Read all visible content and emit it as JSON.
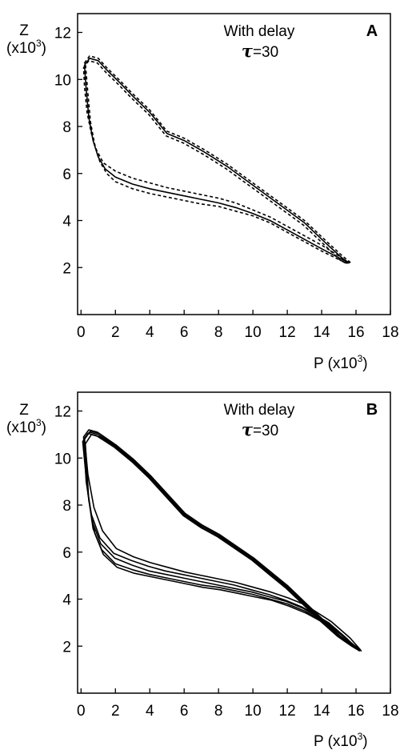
{
  "chart_data": [
    {
      "type": "line",
      "panel_label": "A",
      "annotation_line1": "With delay",
      "annotation_tau_symbol": "τ",
      "annotation_tau_value": "=30",
      "xlabel_main": "P (x10",
      "xlabel_exp": "3",
      "xlabel_tail": ")",
      "ylabel_top": "Z",
      "ylabel_main": "(x10",
      "ylabel_exp": "3",
      "ylabel_tail": ")",
      "xlim": [
        -0.2,
        18
      ],
      "ylim": [
        0,
        12.8
      ],
      "xticks": [
        "0",
        "2",
        "4",
        "6",
        "8",
        "10",
        "12",
        "14",
        "16",
        "18"
      ],
      "yticks": [
        "2",
        "4",
        "6",
        "8",
        "10",
        "12"
      ],
      "series": [
        {
          "style": "solid",
          "x": [
            0.2,
            0.5,
            1.0,
            1.5,
            2.2,
            3.0,
            4.0,
            5.0,
            6.0,
            7.2,
            8.5,
            10.0,
            11.5,
            13.0,
            14.3,
            15.2,
            15.6,
            15.3,
            14.0,
            12.5,
            11.0,
            10.0,
            9.0,
            8.0,
            7.0,
            6.0,
            5.0,
            4.0,
            3.0,
            2.0,
            1.4,
            1.0,
            0.7,
            0.45,
            0.3,
            0.2
          ],
          "y": [
            10.6,
            10.9,
            10.8,
            10.4,
            9.9,
            9.3,
            8.6,
            7.7,
            7.4,
            6.9,
            6.3,
            5.5,
            4.7,
            3.9,
            3.0,
            2.4,
            2.2,
            2.3,
            2.8,
            3.4,
            4.0,
            4.3,
            4.55,
            4.75,
            4.9,
            5.05,
            5.2,
            5.35,
            5.55,
            5.85,
            6.2,
            6.7,
            7.4,
            8.4,
            9.6,
            10.6
          ]
        },
        {
          "style": "dashed",
          "x": [
            0.2,
            0.5,
            1.0,
            1.5,
            2.2,
            3.0,
            4.0,
            5.0,
            6.0,
            7.2,
            8.5,
            10.0,
            11.5,
            13.0,
            14.3,
            15.2,
            15.7,
            15.4,
            14.0,
            12.5,
            11.0,
            10.0,
            9.0,
            8.0,
            7.0,
            6.0,
            5.0,
            4.0,
            3.0,
            2.0,
            1.5,
            1.1,
            0.8,
            0.55,
            0.4,
            0.25
          ],
          "y": [
            10.7,
            11.0,
            10.9,
            10.5,
            10.0,
            9.4,
            8.7,
            7.8,
            7.5,
            7.0,
            6.4,
            5.6,
            4.8,
            4.0,
            3.1,
            2.5,
            2.2,
            2.2,
            2.7,
            3.3,
            3.9,
            4.2,
            4.4,
            4.6,
            4.7,
            4.85,
            5.0,
            5.15,
            5.35,
            5.65,
            6.0,
            6.5,
            7.2,
            8.2,
            9.4,
            10.7
          ]
        },
        {
          "style": "dashed",
          "x": [
            0.15,
            0.45,
            0.95,
            1.45,
            2.15,
            2.95,
            3.95,
            4.95,
            5.95,
            7.15,
            8.45,
            9.95,
            11.45,
            12.95,
            14.25,
            15.1,
            15.5,
            15.2,
            14.0,
            12.5,
            11.0,
            10.0,
            9.0,
            8.0,
            7.0,
            6.0,
            5.0,
            4.0,
            3.0,
            2.0,
            1.3,
            0.9,
            0.6,
            0.35,
            0.2,
            0.15
          ],
          "y": [
            10.5,
            10.8,
            10.7,
            10.3,
            9.8,
            9.2,
            8.5,
            7.6,
            7.3,
            6.8,
            6.2,
            5.4,
            4.6,
            3.8,
            2.9,
            2.3,
            2.15,
            2.4,
            2.95,
            3.55,
            4.15,
            4.45,
            4.75,
            4.95,
            5.1,
            5.25,
            5.4,
            5.6,
            5.8,
            6.1,
            6.45,
            7.0,
            7.7,
            8.6,
            9.7,
            10.5
          ]
        }
      ]
    },
    {
      "type": "line",
      "panel_label": "B",
      "annotation_line1": "With delay",
      "annotation_tau_symbol": "τ",
      "annotation_tau_value": "=30",
      "xlabel_main": "P (x10",
      "xlabel_exp": "3",
      "xlabel_tail": ")",
      "ylabel_top": "Z",
      "ylabel_main": "(x10",
      "ylabel_exp": "3",
      "ylabel_tail": ")",
      "xlim": [
        -0.2,
        18
      ],
      "ylim": [
        0,
        12.8
      ],
      "xticks": [
        "0",
        "2",
        "4",
        "6",
        "8",
        "10",
        "12",
        "14",
        "16",
        "18"
      ],
      "yticks": [
        "2",
        "4",
        "6",
        "8",
        "10",
        "12"
      ],
      "series": [
        {
          "style": "solid",
          "x": [
            0.2,
            0.5,
            1.0,
            2.0,
            3.0,
            4.0,
            5.0,
            6.0,
            7.0,
            8.0,
            9.0,
            10.0,
            11.0,
            12.0,
            13.0,
            14.0,
            15.0,
            15.8,
            16.2,
            15.6,
            14.5,
            13.0,
            12.0,
            11.0,
            10.0,
            9.0,
            8.0,
            7.0,
            6.0,
            5.0,
            4.0,
            3.0,
            2.0,
            1.2,
            0.7,
            0.4,
            0.2
          ],
          "y": [
            10.8,
            11.1,
            11.0,
            10.5,
            9.9,
            9.2,
            8.4,
            7.6,
            7.1,
            6.7,
            6.2,
            5.7,
            5.1,
            4.5,
            3.8,
            3.1,
            2.4,
            2.0,
            1.8,
            2.2,
            2.9,
            3.5,
            3.8,
            4.0,
            4.2,
            4.35,
            4.5,
            4.6,
            4.75,
            4.9,
            5.05,
            5.25,
            5.5,
            6.1,
            7.0,
            8.5,
            10.8
          ]
        },
        {
          "style": "solid",
          "x": [
            0.15,
            0.45,
            0.95,
            1.9,
            2.9,
            3.9,
            4.9,
            5.9,
            6.9,
            7.9,
            8.9,
            9.9,
            10.9,
            11.9,
            12.9,
            13.9,
            14.9,
            15.7,
            16.1,
            15.5,
            14.4,
            12.9,
            11.9,
            10.9,
            9.9,
            8.9,
            7.9,
            6.9,
            5.9,
            4.9,
            3.9,
            2.9,
            1.9,
            1.1,
            0.6,
            0.3,
            0.15
          ],
          "y": [
            10.9,
            11.2,
            11.1,
            10.6,
            10.0,
            9.3,
            8.5,
            7.7,
            7.2,
            6.8,
            6.3,
            5.8,
            5.2,
            4.6,
            3.9,
            3.2,
            2.5,
            2.05,
            1.85,
            2.3,
            3.0,
            3.65,
            3.95,
            4.2,
            4.4,
            4.6,
            4.75,
            4.9,
            5.05,
            5.2,
            5.4,
            5.65,
            5.95,
            6.6,
            7.6,
            9.0,
            10.9
          ]
        },
        {
          "style": "solid",
          "x": [
            0.25,
            0.6,
            1.1,
            2.1,
            3.1,
            4.1,
            5.1,
            6.1,
            7.1,
            8.1,
            9.1,
            10.1,
            11.1,
            12.1,
            13.1,
            14.1,
            15.1,
            15.9,
            16.3,
            15.7,
            14.6,
            13.1,
            12.1,
            11.1,
            10.1,
            9.1,
            8.1,
            7.1,
            6.1,
            5.1,
            4.1,
            3.1,
            2.1,
            1.3,
            0.8,
            0.45,
            0.25
          ],
          "y": [
            10.6,
            11.0,
            10.9,
            10.4,
            9.8,
            9.1,
            8.3,
            7.5,
            7.0,
            6.6,
            6.1,
            5.6,
            5.0,
            4.4,
            3.7,
            3.0,
            2.35,
            1.95,
            1.8,
            2.15,
            2.8,
            3.4,
            3.7,
            3.95,
            4.1,
            4.25,
            4.4,
            4.5,
            4.65,
            4.8,
            4.95,
            5.1,
            5.35,
            5.9,
            6.8,
            8.2,
            10.6
          ]
        },
        {
          "style": "solid",
          "x": [
            0.1,
            0.4,
            0.9,
            1.95,
            2.95,
            3.95,
            4.95,
            5.95,
            6.95,
            7.95,
            8.95,
            9.95,
            10.95,
            11.95,
            12.95,
            13.95,
            14.95,
            15.75,
            16.15,
            15.55,
            14.45,
            12.95,
            11.95,
            10.95,
            9.95,
            8.95,
            7.95,
            6.95,
            5.95,
            4.95,
            3.95,
            2.95,
            1.95,
            1.15,
            0.65,
            0.35,
            0.1
          ],
          "y": [
            10.7,
            11.05,
            10.95,
            10.45,
            9.85,
            9.15,
            8.35,
            7.55,
            7.05,
            6.65,
            6.15,
            5.65,
            5.05,
            4.45,
            3.75,
            3.05,
            2.4,
            2.0,
            1.82,
            2.25,
            2.95,
            3.6,
            3.9,
            4.1,
            4.3,
            4.45,
            4.6,
            4.75,
            4.9,
            5.05,
            5.2,
            5.45,
            5.75,
            6.35,
            7.3,
            8.8,
            10.7
          ]
        },
        {
          "style": "solid",
          "x": [
            0.2,
            0.55,
            1.05,
            2.05,
            3.05,
            4.05,
            5.05,
            6.05,
            7.05,
            8.05,
            9.05,
            10.05,
            11.05,
            12.05,
            13.05,
            14.05,
            15.05,
            15.85,
            16.25,
            15.65,
            14.55,
            13.05,
            12.05,
            11.05,
            10.05,
            9.05,
            8.05,
            7.05,
            6.05,
            5.05,
            4.05,
            3.05,
            2.05,
            1.25,
            0.75,
            0.4,
            0.2
          ],
          "y": [
            10.85,
            11.15,
            11.05,
            10.55,
            9.95,
            9.25,
            8.45,
            7.65,
            7.15,
            6.75,
            6.25,
            5.75,
            5.15,
            4.55,
            3.85,
            3.15,
            2.45,
            2.02,
            1.85,
            2.35,
            3.05,
            3.75,
            4.05,
            4.3,
            4.5,
            4.7,
            4.85,
            5.0,
            5.15,
            5.35,
            5.55,
            5.8,
            6.15,
            6.9,
            7.9,
            9.3,
            10.85
          ]
        }
      ]
    }
  ]
}
